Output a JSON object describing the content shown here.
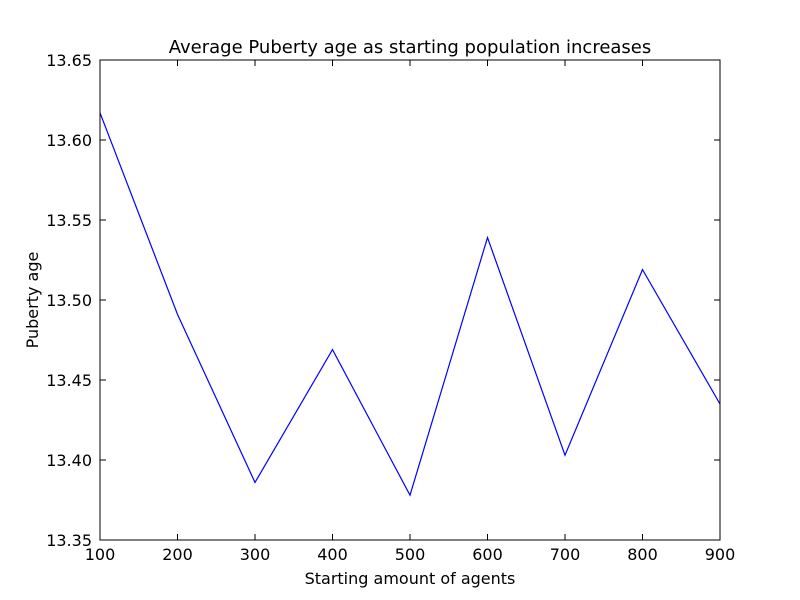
{
  "chart_data": {
    "type": "line",
    "title": "Average Puberty age as starting population increases",
    "xlabel": "Starting amount of agents",
    "ylabel": "Puberty age",
    "xlim": [
      100,
      900
    ],
    "ylim": [
      13.35,
      13.65
    ],
    "xticks": [
      "100",
      "200",
      "300",
      "400",
      "500",
      "600",
      "700",
      "800",
      "900"
    ],
    "yticks": [
      "13.35",
      "13.40",
      "13.45",
      "13.50",
      "13.55",
      "13.60",
      "13.65"
    ],
    "grid": false,
    "series": [
      {
        "color": "#0000ff",
        "x": [
          100,
          200,
          300,
          400,
          500,
          600,
          700,
          800,
          900
        ],
        "y": [
          13.617,
          13.491,
          13.386,
          13.469,
          13.378,
          13.539,
          13.403,
          13.519,
          13.435
        ]
      }
    ]
  }
}
